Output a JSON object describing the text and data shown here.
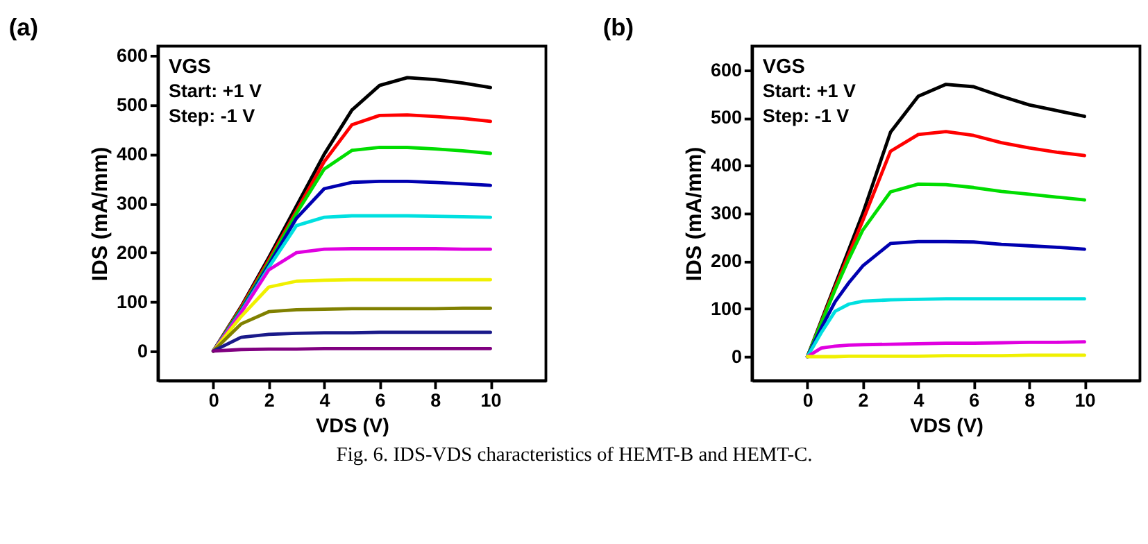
{
  "chart_data": [
    {
      "type": "line",
      "title": "(a)",
      "xlabel": "VDS (V)",
      "ylabel": "IDS (mA/mm)",
      "xlim": [
        -2,
        12
      ],
      "ylim": [
        -60,
        620
      ],
      "xticks": [
        0,
        2,
        4,
        6,
        8,
        10
      ],
      "yticks": [
        0,
        100,
        200,
        300,
        400,
        500,
        600
      ],
      "annotations": [
        "VGS",
        "Start: +1 V",
        "Step:  -1 V",
        "Fig. 6. IDS-VDS characteristics of HEMT-B and HEMT-C."
      ],
      "x": [
        0,
        1,
        2,
        3,
        4,
        5,
        6,
        7,
        8,
        9,
        10
      ],
      "series": [
        {
          "color": "#000000",
          "values": [
            0,
            90,
            190,
            295,
            400,
            490,
            540,
            556,
            552,
            545,
            536
          ]
        },
        {
          "color": "#ff0000",
          "values": [
            0,
            88,
            185,
            285,
            385,
            460,
            479,
            480,
            477,
            473,
            467
          ]
        },
        {
          "color": "#00dd00",
          "values": [
            0,
            85,
            180,
            280,
            370,
            408,
            414,
            414,
            411,
            407,
            402
          ]
        },
        {
          "color": "#0000b0",
          "values": [
            0,
            82,
            175,
            270,
            330,
            343,
            345,
            345,
            343,
            340,
            337
          ]
        },
        {
          "color": "#00e0e0",
          "values": [
            0,
            80,
            170,
            255,
            272,
            275,
            275,
            275,
            274,
            273,
            272
          ]
        },
        {
          "color": "#e000e0",
          "values": [
            0,
            78,
            165,
            200,
            207,
            208,
            208,
            208,
            208,
            207,
            207
          ]
        },
        {
          "color": "#f0f000",
          "values": [
            0,
            70,
            130,
            142,
            144,
            145,
            145,
            145,
            145,
            145,
            145
          ]
        },
        {
          "color": "#808000",
          "values": [
            0,
            55,
            80,
            84,
            85,
            86,
            86,
            86,
            86,
            87,
            87
          ]
        },
        {
          "color": "#1a1a8a",
          "values": [
            0,
            28,
            34,
            36,
            37,
            37,
            38,
            38,
            38,
            38,
            38
          ]
        },
        {
          "color": "#800080",
          "values": [
            0,
            3,
            4,
            4,
            5,
            5,
            5,
            5,
            5,
            5,
            5
          ]
        }
      ]
    },
    {
      "type": "line",
      "title": "(b)",
      "xlabel": "VDS (V)",
      "ylabel": "IDS (mA/mm)",
      "xlim": [
        -2,
        12
      ],
      "ylim": [
        -50,
        650
      ],
      "xticks": [
        0,
        2,
        4,
        6,
        8,
        10
      ],
      "yticks": [
        0,
        100,
        200,
        300,
        400,
        500,
        600
      ],
      "annotations": [
        "VGS",
        "Start: +1 V",
        "Step:  -1 V"
      ],
      "x": [
        0,
        0.5,
        1,
        1.5,
        2,
        3,
        4,
        5,
        6,
        7,
        8,
        9,
        10
      ],
      "series": [
        {
          "color": "#000000",
          "values": [
            0,
            75,
            150,
            225,
            300,
            470,
            545,
            570,
            565,
            545,
            527,
            515,
            503
          ]
        },
        {
          "color": "#ff0000",
          "values": [
            0,
            72,
            145,
            215,
            285,
            430,
            465,
            471,
            463,
            448,
            437,
            428,
            421
          ]
        },
        {
          "color": "#00dd00",
          "values": [
            0,
            70,
            140,
            205,
            265,
            345,
            361,
            360,
            354,
            346,
            340,
            334,
            328
          ]
        },
        {
          "color": "#0000b0",
          "values": [
            0,
            60,
            115,
            155,
            190,
            237,
            241,
            241,
            240,
            235,
            232,
            229,
            225
          ]
        },
        {
          "color": "#00e0e0",
          "values": [
            0,
            50,
            95,
            110,
            116,
            119,
            120,
            121,
            121,
            121,
            121,
            121,
            121
          ]
        },
        {
          "color": "#e000e0",
          "values": [
            0,
            18,
            22,
            24,
            25,
            26,
            27,
            28,
            28,
            29,
            30,
            30,
            31
          ]
        },
        {
          "color": "#f0f000",
          "values": [
            0,
            0,
            0,
            1,
            1,
            1,
            1,
            2,
            2,
            2,
            3,
            3,
            3
          ]
        }
      ]
    }
  ]
}
